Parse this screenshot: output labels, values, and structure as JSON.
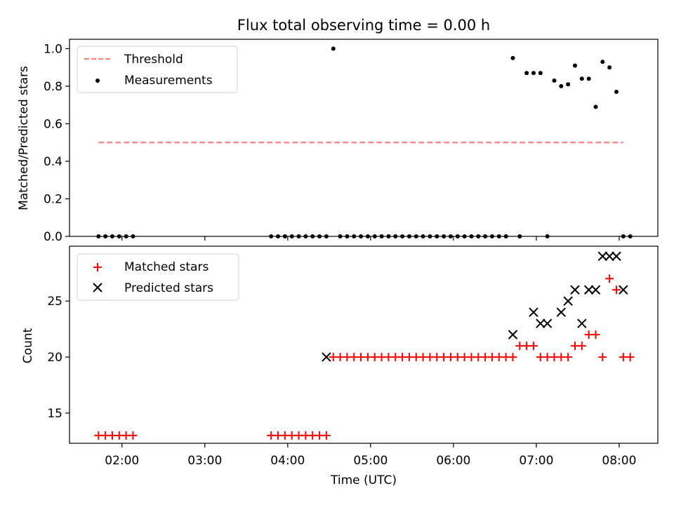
{
  "title": "Flux total observing time = 0.00 h",
  "colors": {
    "threshold": "#ff7f7f",
    "measurement": "#000000",
    "matched": "#ff0000",
    "predicted": "#000000"
  },
  "chart_data": [
    {
      "type": "scatter",
      "ylabel": "Matched/Predicted stars",
      "ylim": [
        0,
        1.05
      ],
      "yticks": [
        "0.0",
        "0.2",
        "0.4",
        "0.6",
        "0.8",
        "1.0"
      ],
      "xlim": [
        "01:22",
        "08:28"
      ],
      "xticks": [
        "02:00",
        "03:00",
        "04:00",
        "05:00",
        "06:00",
        "07:00",
        "08:00"
      ],
      "legend_position": "upper-left",
      "series": [
        {
          "name": "Threshold",
          "style": "dashed-line",
          "x": [
            "01:43",
            "08:03"
          ],
          "y": [
            0.5,
            0.5
          ]
        },
        {
          "name": "Measurements",
          "style": "dots",
          "x": [
            "01:43",
            "01:48",
            "01:53",
            "01:58",
            "02:03",
            "02:08",
            "03:48",
            "03:53",
            "03:58",
            "04:03",
            "04:08",
            "04:13",
            "04:18",
            "04:23",
            "04:28",
            "04:33",
            "04:38",
            "04:43",
            "04:48",
            "04:53",
            "04:58",
            "05:03",
            "05:08",
            "05:13",
            "05:18",
            "05:23",
            "05:28",
            "05:33",
            "05:38",
            "05:43",
            "05:48",
            "05:53",
            "05:58",
            "06:03",
            "06:08",
            "06:13",
            "06:18",
            "06:23",
            "06:28",
            "06:33",
            "06:38",
            "06:43",
            "06:48",
            "06:53",
            "06:58",
            "07:03",
            "07:08",
            "07:13",
            "07:18",
            "07:23",
            "07:28",
            "07:33",
            "07:38",
            "07:43",
            "07:48",
            "07:53",
            "07:58",
            "08:03",
            "08:08"
          ],
          "y": [
            0,
            0,
            0,
            0,
            0,
            0,
            0,
            0,
            0,
            0,
            0,
            0,
            0,
            0,
            0,
            1.0,
            0,
            0,
            0,
            0,
            0,
            0,
            0,
            0,
            0,
            0,
            0,
            0,
            0,
            0,
            0,
            0,
            0,
            0,
            0,
            0,
            0,
            0,
            0,
            0,
            0,
            0.95,
            0,
            0.87,
            0.87,
            0.87,
            0,
            0.83,
            0.8,
            0.81,
            0.91,
            0.84,
            0.84,
            0.69,
            0.93,
            0.9,
            0.77,
            0,
            0
          ]
        }
      ]
    },
    {
      "type": "scatter",
      "xlabel": "Time (UTC)",
      "ylabel": "Count",
      "ylim": [
        12.3,
        29.9
      ],
      "yticks": [
        "15",
        "20",
        "25"
      ],
      "xlim": [
        "01:22",
        "08:28"
      ],
      "xticks": [
        "02:00",
        "03:00",
        "04:00",
        "05:00",
        "06:00",
        "07:00",
        "08:00"
      ],
      "legend_position": "upper-left",
      "series": [
        {
          "name": "Matched stars",
          "marker": "+",
          "x": [
            "01:43",
            "01:48",
            "01:53",
            "01:58",
            "02:03",
            "02:08",
            "03:48",
            "03:53",
            "03:58",
            "04:03",
            "04:08",
            "04:13",
            "04:18",
            "04:23",
            "04:28",
            "04:33",
            "04:38",
            "04:43",
            "04:48",
            "04:53",
            "04:58",
            "05:03",
            "05:08",
            "05:13",
            "05:18",
            "05:23",
            "05:28",
            "05:33",
            "05:38",
            "05:43",
            "05:48",
            "05:53",
            "05:58",
            "06:03",
            "06:08",
            "06:13",
            "06:18",
            "06:23",
            "06:28",
            "06:33",
            "06:38",
            "06:43",
            "06:48",
            "06:53",
            "06:58",
            "07:03",
            "07:08",
            "07:13",
            "07:18",
            "07:23",
            "07:28",
            "07:33",
            "07:38",
            "07:43",
            "07:48",
            "07:53",
            "07:58",
            "08:03",
            "08:08"
          ],
          "y": [
            13,
            13,
            13,
            13,
            13,
            13,
            13,
            13,
            13,
            13,
            13,
            13,
            13,
            13,
            13,
            20,
            20,
            20,
            20,
            20,
            20,
            20,
            20,
            20,
            20,
            20,
            20,
            20,
            20,
            20,
            20,
            20,
            20,
            20,
            20,
            20,
            20,
            20,
            20,
            20,
            20,
            20,
            21,
            21,
            21,
            20,
            20,
            20,
            20,
            20,
            21,
            21,
            22,
            22,
            20,
            27,
            26,
            20,
            20
          ]
        },
        {
          "name": "Predicted stars",
          "marker": "x",
          "x": [
            "04:28",
            "06:43",
            "06:58",
            "07:03",
            "07:08",
            "07:18",
            "07:23",
            "07:28",
            "07:33",
            "07:38",
            "07:43",
            "07:48",
            "07:53",
            "07:58",
            "08:03"
          ],
          "y": [
            20,
            22,
            24,
            23,
            23,
            24,
            25,
            26,
            23,
            26,
            26,
            29,
            29,
            29,
            26
          ]
        }
      ]
    }
  ]
}
